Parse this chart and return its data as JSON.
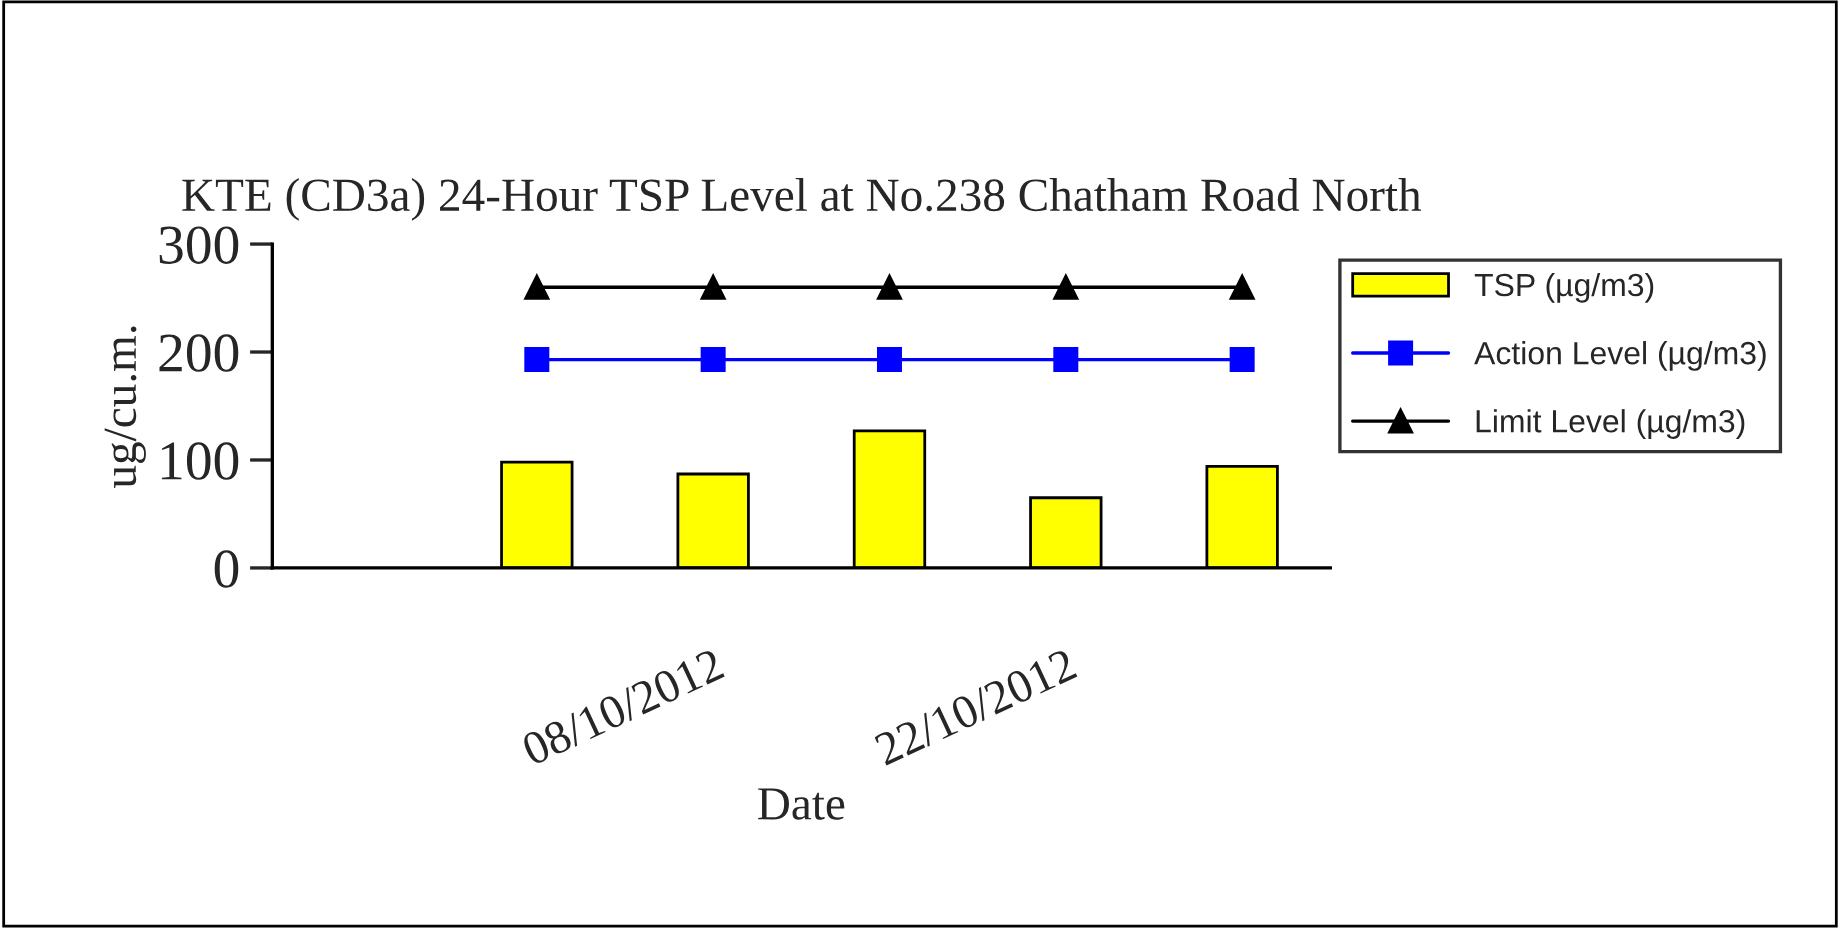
{
  "chart_data": {
    "type": "bar",
    "title": "KTE (CD3a) 24-Hour TSP Level at No.238 Chatham Road North",
    "xlabel": "Date",
    "ylabel": "ug/cu.m.",
    "categories": [
      null,
      null,
      "08/10/2012",
      null,
      "22/10/2012",
      null
    ],
    "series": [
      {
        "name": "TSP (µg/m3)",
        "color": "#ffff00",
        "values": [
          null,
          98,
          87,
          127,
          65,
          94
        ]
      },
      {
        "name": "Action Level (µg/m3)",
        "type": "line",
        "color": "#0000ff",
        "marker": "square",
        "values": [
          null,
          193,
          193,
          193,
          193,
          193
        ]
      },
      {
        "name": "Limit Level (µg/m3)",
        "type": "line",
        "color": "#000000",
        "marker": "triangle",
        "values": [
          null,
          260,
          260,
          260,
          260,
          260
        ]
      }
    ],
    "ylim": [
      0,
      300
    ],
    "yticks": [
      0,
      100,
      200,
      300
    ],
    "grid": false,
    "legend": "right"
  }
}
